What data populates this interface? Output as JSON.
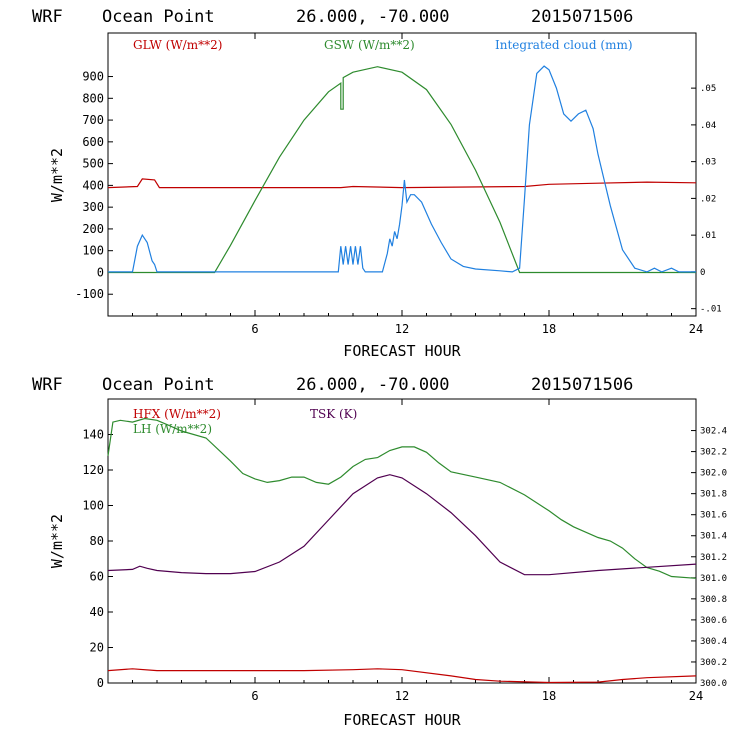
{
  "chart_data": [
    {
      "type": "line",
      "header": {
        "model": "WRF",
        "location": "Ocean Point",
        "coords": "26.000, -70.000",
        "date": "2015071506"
      },
      "xlabel": "FORECAST HOUR",
      "ylabel": "W/m**2",
      "xlim": [
        0,
        24
      ],
      "ylim": [
        -200,
        1100
      ],
      "y_ticks": [
        -100,
        0,
        100,
        200,
        300,
        400,
        500,
        600,
        700,
        800,
        900
      ],
      "x_ticks": [
        6,
        12,
        18,
        24
      ],
      "y2lim": [
        -0.012,
        0.065
      ],
      "y2_ticks": [
        -0.01,
        0,
        0.01,
        0.02,
        0.03,
        0.04,
        0.05
      ],
      "y2_tick_labels": [
        "-.01",
        "0",
        ".01",
        ".02",
        ".03",
        ".04",
        ".05"
      ],
      "series": [
        {
          "name": "GLW (W/m**2)",
          "color": "#c00000",
          "axis": "left",
          "x": [
            0,
            1.2,
            1.4,
            1.9,
            2.1,
            9.5,
            10,
            12,
            17,
            18,
            20,
            22,
            24
          ],
          "y": [
            390,
            395,
            430,
            425,
            390,
            390,
            395,
            390,
            395,
            405,
            410,
            415,
            412
          ]
        },
        {
          "name": "GSW (W/m**2)",
          "color": "#2e8b2e",
          "axis": "left",
          "x": [
            0,
            4.35,
            5,
            6,
            7,
            8,
            9,
            9.5,
            9.5,
            9.6,
            9.6,
            10,
            11,
            12,
            13,
            14,
            15,
            16,
            16.8,
            24
          ],
          "y": [
            0,
            0,
            125,
            330,
            530,
            700,
            830,
            870,
            750,
            750,
            895,
            920,
            945,
            920,
            840,
            680,
            470,
            230,
            0,
            0
          ]
        },
        {
          "name": "Integrated cloud (mm)",
          "color": "#2080e0",
          "axis": "right",
          "x": [
            0,
            1.0,
            1.2,
            1.4,
            1.6,
            1.8,
            1.9,
            2.0,
            3.0,
            9.4,
            9.5,
            9.6,
            9.7,
            9.8,
            9.9,
            10.0,
            10.1,
            10.2,
            10.3,
            10.4,
            10.5,
            10.6,
            10.7,
            10.8,
            11.2,
            11.4,
            11.5,
            11.6,
            11.7,
            11.8,
            11.9,
            12.0,
            12.1,
            12.2,
            12.35,
            12.5,
            12.8,
            13.2,
            13.6,
            14.0,
            14.5,
            15.0,
            16.0,
            16.5,
            16.8,
            17.0,
            17.2,
            17.5,
            17.8,
            18.0,
            18.3,
            18.6,
            18.9,
            19.2,
            19.5,
            19.8,
            20.0,
            20.5,
            21.0,
            21.5,
            22.0,
            22.3,
            22.6,
            23.0,
            23.3,
            24.0
          ],
          "y": [
            0,
            0,
            0.007,
            0.01,
            0.008,
            0.003,
            0.002,
            0,
            0,
            0,
            0.007,
            0.002,
            0.007,
            0.002,
            0.007,
            0.002,
            0.007,
            0.002,
            0.007,
            0.001,
            0,
            0,
            0,
            0,
            0,
            0.005,
            0.009,
            0.007,
            0.011,
            0.009,
            0.013,
            0.018,
            0.025,
            0.019,
            0.021,
            0.021,
            0.019,
            0.013,
            0.008,
            0.0035,
            0.0015,
            0.0008,
            0.0003,
            0,
            0.001,
            0.02,
            0.04,
            0.054,
            0.056,
            0.055,
            0.05,
            0.043,
            0.041,
            0.043,
            0.044,
            0.039,
            0.032,
            0.018,
            0.006,
            0.001,
            0,
            0.001,
            0,
            0.001,
            0,
            0
          ]
        }
      ]
    },
    {
      "type": "line",
      "header": {
        "model": "WRF",
        "location": "Ocean Point",
        "coords": "26.000, -70.000",
        "date": "2015071506"
      },
      "xlabel": "FORECAST HOUR",
      "ylabel": "W/m**2",
      "xlim": [
        0,
        24
      ],
      "ylim": [
        0,
        160
      ],
      "y_ticks": [
        0,
        20,
        40,
        60,
        80,
        100,
        120,
        140
      ],
      "x_ticks": [
        6,
        12,
        18,
        24
      ],
      "y2lim": [
        300.0,
        302.7
      ],
      "y2_ticks": [
        300.0,
        300.2,
        300.4,
        300.6,
        300.8,
        301.0,
        301.2,
        301.4,
        301.6,
        301.8,
        302.0,
        302.2,
        302.4
      ],
      "y2_tick_labels": [
        "300.0",
        "300.2",
        "300.4",
        "300.6",
        "300.8",
        "301.0",
        "301.2",
        "301.4",
        "301.6",
        "301.8",
        "302.0",
        "302.2",
        "302.4"
      ],
      "series": [
        {
          "name": "HFX (W/m**2)",
          "color": "#c00000",
          "axis": "left",
          "x": [
            0,
            1,
            2,
            4,
            6,
            8,
            10,
            11,
            12,
            14,
            15,
            16,
            18,
            20,
            21,
            22,
            24
          ],
          "y": [
            7,
            8,
            7,
            7,
            7,
            7,
            7.5,
            8,
            7.5,
            4,
            2,
            1,
            0.3,
            0.5,
            2,
            3,
            4
          ]
        },
        {
          "name": "LH (W/m**2)",
          "color": "#2e8b2e",
          "axis": "left",
          "x": [
            0,
            0.2,
            0.5,
            1,
            1.5,
            2,
            2.5,
            3,
            4,
            5,
            5.5,
            6,
            6.5,
            7,
            7.5,
            8,
            8.5,
            9,
            9.5,
            10,
            10.5,
            11,
            11.5,
            12,
            12.5,
            13,
            13.5,
            14,
            15,
            16,
            17,
            18,
            18.5,
            19,
            20,
            20.5,
            21,
            21.5,
            22,
            22.5,
            23,
            24
          ],
          "y": [
            128,
            147,
            148,
            147,
            149,
            148,
            145,
            142,
            138,
            125,
            118,
            115,
            113,
            114,
            116,
            116,
            113,
            112,
            116,
            122,
            126,
            127,
            131,
            133,
            133,
            130,
            124,
            119,
            116,
            113,
            106,
            97,
            92,
            88,
            82,
            80,
            76,
            70,
            65,
            63,
            60,
            59
          ]
        },
        {
          "name": "TSK (K)",
          "color": "#500050",
          "axis": "right",
          "x": [
            0,
            1,
            1.3,
            1.6,
            2,
            3,
            4,
            5,
            6,
            7,
            8,
            9,
            10,
            11,
            11.5,
            12,
            13,
            14,
            15,
            16,
            17,
            18,
            20,
            22,
            24
          ],
          "y": [
            301.07,
            301.08,
            301.11,
            301.09,
            301.07,
            301.05,
            301.04,
            301.04,
            301.06,
            301.15,
            301.3,
            301.55,
            301.8,
            301.95,
            301.98,
            301.95,
            301.8,
            301.62,
            301.4,
            301.15,
            301.03,
            301.03,
            301.07,
            301.1,
            301.13
          ]
        }
      ]
    }
  ]
}
